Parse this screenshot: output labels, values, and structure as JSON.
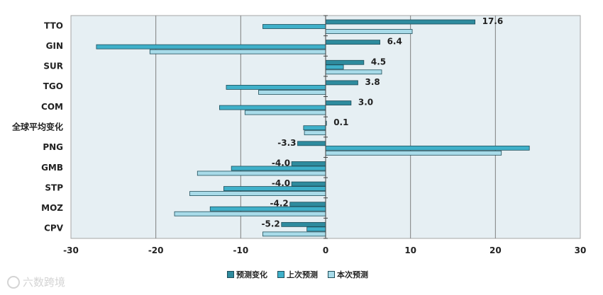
{
  "chart_data": {
    "type": "bar",
    "orientation": "horizontal",
    "categories": [
      "TTO",
      "GIN",
      "SUR",
      "TGO",
      "COM",
      "全球平均变化",
      "PNG",
      "GMB",
      "STP",
      "MOZ",
      "CPV"
    ],
    "series": [
      {
        "name": "预测变化",
        "values": [
          17.6,
          6.4,
          4.5,
          3.8,
          3.0,
          0.1,
          -3.3,
          -4.0,
          -4.0,
          -4.2,
          -5.2
        ],
        "color": "#2e8b9e"
      },
      {
        "name": "上次预测",
        "values": [
          -7.4,
          -27.0,
          2.1,
          -11.7,
          -12.5,
          -2.6,
          24.0,
          -11.1,
          -12.0,
          -13.6,
          -2.2
        ],
        "color": "#3fb0c9"
      },
      {
        "name": "本次预测",
        "values": [
          10.2,
          -20.7,
          6.6,
          -7.9,
          -9.5,
          -2.5,
          20.7,
          -15.1,
          -16.0,
          -17.8,
          -7.4
        ],
        "color": "#a8dbe9"
      }
    ],
    "data_labels": [
      "17.6",
      "6.4",
      "4.5",
      "3.8",
      "3.0",
      "0.1",
      "-3.3",
      "-4.0",
      "-4.0",
      "-4.2",
      "-5.2"
    ],
    "x_ticks": [
      "-30",
      "-20",
      "-10",
      "0",
      "10",
      "20",
      "30"
    ],
    "xlim": [
      -30,
      30
    ],
    "grid": "vertical",
    "legend_position": "bottom",
    "title": "",
    "xlabel": "",
    "ylabel": ""
  },
  "watermark_text": "六数跨境"
}
